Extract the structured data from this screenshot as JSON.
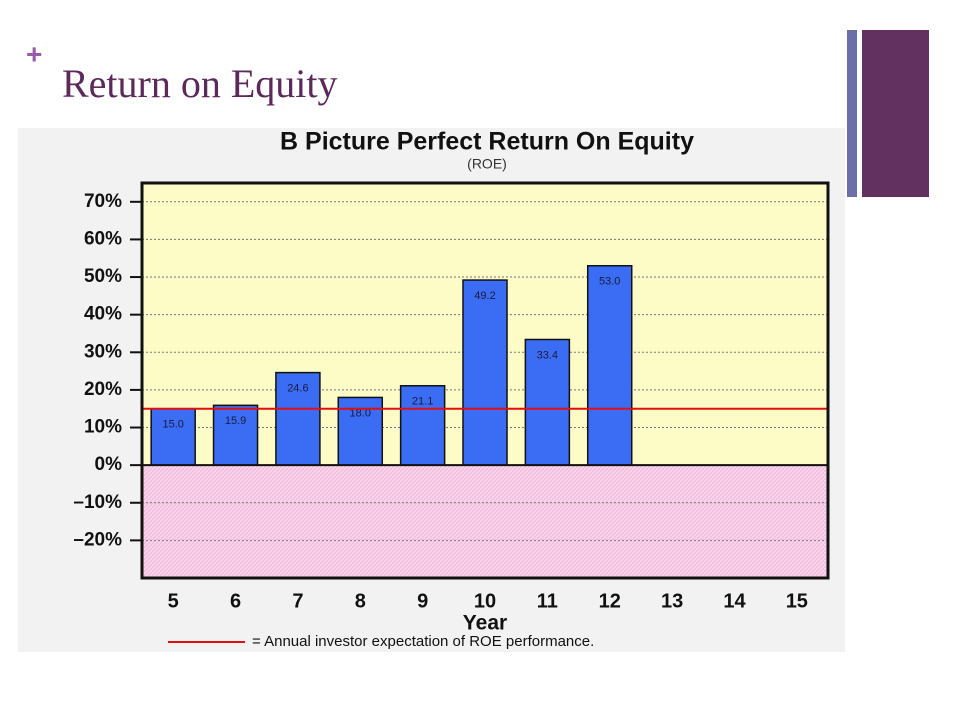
{
  "slide": {
    "plus": "+",
    "title": "Return on Equity"
  },
  "chart_data": {
    "type": "bar",
    "title": "B Picture Perfect Return On Equity",
    "subtitle": "(ROE)",
    "x_label": "Year",
    "categories": [
      "5",
      "6",
      "7",
      "8",
      "9",
      "10",
      "11",
      "12",
      "13",
      "14",
      "15"
    ],
    "values": [
      15.0,
      15.9,
      24.6,
      18.0,
      21.1,
      49.2,
      33.4,
      53.0,
      null,
      null,
      null
    ],
    "value_labels": [
      "15.0",
      "15.9",
      "24.6",
      "18.0",
      "21.1",
      "49.2",
      "33.4",
      "53.0",
      null,
      null,
      null
    ],
    "color": "#3a6cf4",
    "ylim": [
      -30,
      75
    ],
    "yticks": [
      {
        "value": -20,
        "label": "–20%"
      },
      {
        "value": -10,
        "label": "–10%"
      },
      {
        "value": 0,
        "label": "0%"
      },
      {
        "value": 10,
        "label": "10%"
      },
      {
        "value": 20,
        "label": "20%"
      },
      {
        "value": 30,
        "label": "30%"
      },
      {
        "value": 40,
        "label": "40%"
      },
      {
        "value": 50,
        "label": "50%"
      },
      {
        "value": 60,
        "label": "60%"
      },
      {
        "value": 70,
        "label": "70%"
      }
    ],
    "grid": true,
    "reference_line": {
      "value": 15,
      "color": "#e01010",
      "label": "= Annual investor expectation of ROE performance."
    }
  }
}
